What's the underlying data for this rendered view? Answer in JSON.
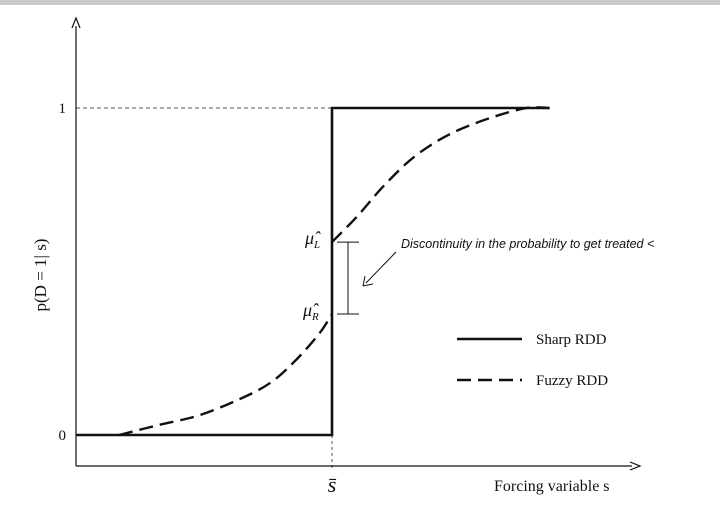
{
  "chart_data": {
    "type": "line",
    "title": "",
    "xlabel": "Forcing variable s",
    "ylabel": "p(D = 1| s)",
    "xlim": [
      0,
      10
    ],
    "ylim": [
      0,
      1
    ],
    "threshold": 5,
    "x_ticks": [
      {
        "value": 5,
        "label": "s̄"
      }
    ],
    "y_ticks": [
      {
        "value": 0,
        "label": "0"
      },
      {
        "value": 1,
        "label": "1"
      }
    ],
    "series": [
      {
        "name": "Sharp RDD",
        "style": "solid",
        "points": [
          [
            0,
            0
          ],
          [
            5,
            0
          ],
          [
            5,
            1
          ],
          [
            9.25,
            1
          ]
        ]
      },
      {
        "name": "Fuzzy RDD",
        "style": "dashed",
        "points": [
          [
            0.84,
            0
          ],
          [
            1.6,
            0.03
          ],
          [
            2.4,
            0.06
          ],
          [
            3.2,
            0.11
          ],
          [
            3.8,
            0.16
          ],
          [
            4.3,
            0.23
          ],
          [
            4.75,
            0.31
          ],
          [
            5,
            0.37
          ],
          [
            5,
            0.59
          ],
          [
            5.5,
            0.67
          ],
          [
            6,
            0.76
          ],
          [
            6.6,
            0.85
          ],
          [
            7.3,
            0.92
          ],
          [
            8.1,
            0.97
          ],
          [
            8.8,
            1
          ],
          [
            9.25,
            1
          ]
        ]
      }
    ],
    "annotations": {
      "mu_L": {
        "label": "μ̂",
        "subscript": "L",
        "value": 0.59
      },
      "mu_R": {
        "label": "μ̂",
        "subscript": "R",
        "value": 0.37
      },
      "discontinuity": "Discontinuity in the probability to get treated <"
    },
    "legend": {
      "position": "right",
      "entries": [
        {
          "label": "Sharp RDD",
          "style": "solid"
        },
        {
          "label": "Fuzzy RDD",
          "style": "dashed"
        }
      ]
    },
    "colors": {
      "lines": "#111111",
      "guides": "#555555",
      "top_bar": "#c9c9c9"
    }
  }
}
